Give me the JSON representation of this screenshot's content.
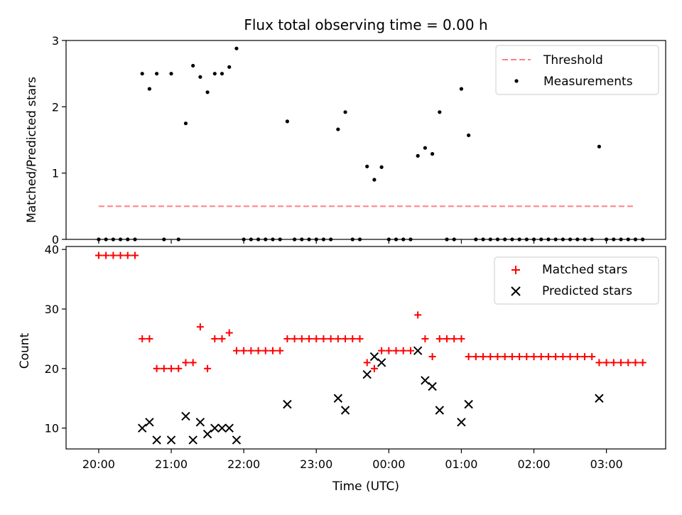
{
  "chart_data": [
    {
      "type": "scatter",
      "title": "Flux total observing time = 0.00 h",
      "xlabel": "",
      "ylabel": "Matched/Predicted stars",
      "xlim": [
        "19:33",
        "03:49"
      ],
      "ylim": [
        0,
        3
      ],
      "y_ticks": [
        "0",
        "1",
        "2",
        "3"
      ],
      "legend_position": "top-right",
      "grid": false,
      "colors": {
        "threshold": "#ff8080",
        "measurements": "#000000"
      },
      "threshold": {
        "name": "Threshold",
        "y": 0.5,
        "x_range": [
          "20:00",
          "03:23"
        ]
      },
      "measurements": {
        "name": "Measurements",
        "points": [
          [
            "20:00",
            0
          ],
          [
            "20:06",
            0
          ],
          [
            "20:12",
            0
          ],
          [
            "20:18",
            0
          ],
          [
            "20:24",
            0
          ],
          [
            "20:30",
            0
          ],
          [
            "20:36",
            2.5
          ],
          [
            "20:42",
            2.27
          ],
          [
            "20:48",
            2.5
          ],
          [
            "20:54",
            0
          ],
          [
            "21:00",
            2.5
          ],
          [
            "21:06",
            0
          ],
          [
            "21:12",
            1.75
          ],
          [
            "21:18",
            2.62
          ],
          [
            "21:24",
            2.45
          ],
          [
            "21:30",
            2.22
          ],
          [
            "21:36",
            2.5
          ],
          [
            "21:42",
            2.5
          ],
          [
            "21:48",
            2.6
          ],
          [
            "21:54",
            2.88
          ],
          [
            "22:00",
            0
          ],
          [
            "22:06",
            0
          ],
          [
            "22:12",
            0
          ],
          [
            "22:18",
            0
          ],
          [
            "22:24",
            0
          ],
          [
            "22:30",
            0
          ],
          [
            "22:36",
            1.78
          ],
          [
            "22:42",
            0
          ],
          [
            "22:48",
            0
          ],
          [
            "22:54",
            0
          ],
          [
            "23:00",
            0
          ],
          [
            "23:06",
            0
          ],
          [
            "23:12",
            0
          ],
          [
            "23:18",
            1.66
          ],
          [
            "23:24",
            1.92
          ],
          [
            "23:30",
            0
          ],
          [
            "23:36",
            0
          ],
          [
            "23:42",
            1.1
          ],
          [
            "23:48",
            0.9
          ],
          [
            "23:54",
            1.09
          ],
          [
            "00:00",
            0
          ],
          [
            "00:06",
            0
          ],
          [
            "00:12",
            0
          ],
          [
            "00:18",
            0
          ],
          [
            "00:24",
            1.26
          ],
          [
            "00:30",
            1.38
          ],
          [
            "00:36",
            1.29
          ],
          [
            "00:42",
            1.92
          ],
          [
            "00:48",
            0
          ],
          [
            "00:54",
            0
          ],
          [
            "01:00",
            2.27
          ],
          [
            "01:06",
            1.57
          ],
          [
            "01:12",
            0
          ],
          [
            "01:18",
            0
          ],
          [
            "01:24",
            0
          ],
          [
            "01:30",
            0
          ],
          [
            "01:36",
            0
          ],
          [
            "01:42",
            0
          ],
          [
            "01:48",
            0
          ],
          [
            "01:54",
            0
          ],
          [
            "02:00",
            0
          ],
          [
            "02:06",
            0
          ],
          [
            "02:12",
            0
          ],
          [
            "02:18",
            0
          ],
          [
            "02:24",
            0
          ],
          [
            "02:30",
            0
          ],
          [
            "02:36",
            0
          ],
          [
            "02:42",
            0
          ],
          [
            "02:48",
            0
          ],
          [
            "02:54",
            1.4
          ],
          [
            "03:00",
            0
          ],
          [
            "03:06",
            0
          ],
          [
            "03:12",
            0
          ],
          [
            "03:18",
            0
          ],
          [
            "03:24",
            0
          ],
          [
            "03:30",
            0
          ]
        ]
      }
    },
    {
      "type": "scatter",
      "title": "",
      "xlabel": "Time (UTC)",
      "ylabel": "Count",
      "xlim": [
        "19:33",
        "03:49"
      ],
      "ylim": [
        6.5,
        40.5
      ],
      "y_ticks": [
        "10",
        "20",
        "30",
        "40"
      ],
      "x_ticks": [
        "20:00",
        "21:00",
        "22:00",
        "23:00",
        "00:00",
        "01:00",
        "02:00",
        "03:00"
      ],
      "legend_position": "top-right",
      "grid": false,
      "colors": {
        "matched": "#ff0000",
        "predicted": "#000000"
      },
      "series": [
        {
          "name": "Matched stars",
          "marker": "plus",
          "points": [
            [
              "20:00",
              39
            ],
            [
              "20:06",
              39
            ],
            [
              "20:12",
              39
            ],
            [
              "20:18",
              39
            ],
            [
              "20:24",
              39
            ],
            [
              "20:30",
              39
            ],
            [
              "20:36",
              25
            ],
            [
              "20:42",
              25
            ],
            [
              "20:48",
              20
            ],
            [
              "20:54",
              20
            ],
            [
              "21:00",
              20
            ],
            [
              "21:06",
              20
            ],
            [
              "21:12",
              21
            ],
            [
              "21:18",
              21
            ],
            [
              "21:24",
              27
            ],
            [
              "21:30",
              20
            ],
            [
              "21:36",
              25
            ],
            [
              "21:42",
              25
            ],
            [
              "21:48",
              26
            ],
            [
              "21:54",
              23
            ],
            [
              "22:00",
              23
            ],
            [
              "22:06",
              23
            ],
            [
              "22:12",
              23
            ],
            [
              "22:18",
              23
            ],
            [
              "22:24",
              23
            ],
            [
              "22:30",
              23
            ],
            [
              "22:36",
              25
            ],
            [
              "22:42",
              25
            ],
            [
              "22:48",
              25
            ],
            [
              "22:54",
              25
            ],
            [
              "23:00",
              25
            ],
            [
              "23:06",
              25
            ],
            [
              "23:12",
              25
            ],
            [
              "23:18",
              25
            ],
            [
              "23:24",
              25
            ],
            [
              "23:30",
              25
            ],
            [
              "23:36",
              25
            ],
            [
              "23:42",
              21
            ],
            [
              "23:48",
              20
            ],
            [
              "23:54",
              23
            ],
            [
              "00:00",
              23
            ],
            [
              "00:06",
              23
            ],
            [
              "00:12",
              23
            ],
            [
              "00:18",
              23
            ],
            [
              "00:24",
              29
            ],
            [
              "00:30",
              25
            ],
            [
              "00:36",
              22
            ],
            [
              "00:42",
              25
            ],
            [
              "00:48",
              25
            ],
            [
              "00:54",
              25
            ],
            [
              "01:00",
              25
            ],
            [
              "01:06",
              22
            ],
            [
              "01:12",
              22
            ],
            [
              "01:18",
              22
            ],
            [
              "01:24",
              22
            ],
            [
              "01:30",
              22
            ],
            [
              "01:36",
              22
            ],
            [
              "01:42",
              22
            ],
            [
              "01:48",
              22
            ],
            [
              "01:54",
              22
            ],
            [
              "02:00",
              22
            ],
            [
              "02:06",
              22
            ],
            [
              "02:12",
              22
            ],
            [
              "02:18",
              22
            ],
            [
              "02:24",
              22
            ],
            [
              "02:30",
              22
            ],
            [
              "02:36",
              22
            ],
            [
              "02:42",
              22
            ],
            [
              "02:48",
              22
            ],
            [
              "02:54",
              21
            ],
            [
              "03:00",
              21
            ],
            [
              "03:06",
              21
            ],
            [
              "03:12",
              21
            ],
            [
              "03:18",
              21
            ],
            [
              "03:24",
              21
            ],
            [
              "03:30",
              21
            ]
          ]
        },
        {
          "name": "Predicted stars",
          "marker": "x",
          "points": [
            [
              "20:36",
              10
            ],
            [
              "20:42",
              11
            ],
            [
              "20:48",
              8
            ],
            [
              "21:00",
              8
            ],
            [
              "21:12",
              12
            ],
            [
              "21:18",
              8
            ],
            [
              "21:24",
              11
            ],
            [
              "21:30",
              9
            ],
            [
              "21:36",
              10
            ],
            [
              "21:42",
              10
            ],
            [
              "21:48",
              10
            ],
            [
              "21:54",
              8
            ],
            [
              "22:36",
              14
            ],
            [
              "23:18",
              15
            ],
            [
              "23:24",
              13
            ],
            [
              "23:42",
              19
            ],
            [
              "23:48",
              22
            ],
            [
              "23:54",
              21
            ],
            [
              "00:24",
              23
            ],
            [
              "00:30",
              18
            ],
            [
              "00:36",
              17
            ],
            [
              "00:42",
              13
            ],
            [
              "01:00",
              11
            ],
            [
              "01:06",
              14
            ],
            [
              "02:54",
              15
            ]
          ]
        }
      ]
    }
  ]
}
